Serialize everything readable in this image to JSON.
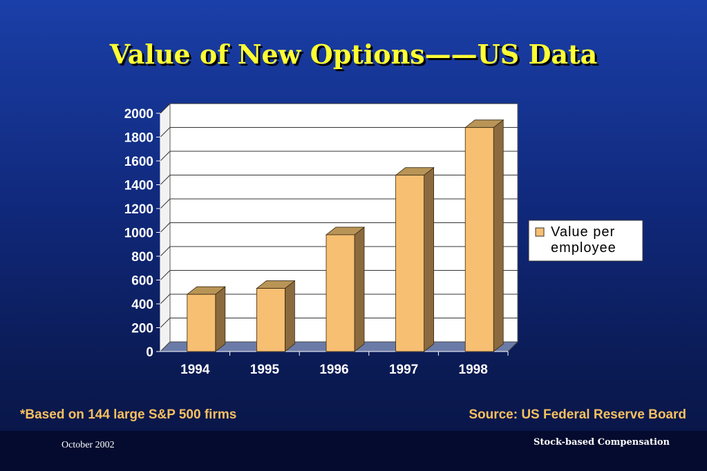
{
  "slide": {
    "title": "Value of New Options——US Data",
    "footnote": "*Based on 144 large S&P 500 firms",
    "source": "Source:  US Federal Reserve Board",
    "footer_date": "October 2002",
    "footer_topic": "Stock-based Compensation"
  },
  "chart_data": {
    "type": "bar",
    "categories": [
      "1994",
      "1995",
      "1996",
      "1997",
      "1998"
    ],
    "series": [
      {
        "name": "Value per employee",
        "values": [
          480,
          530,
          980,
          1480,
          1880
        ]
      }
    ],
    "yticks": [
      "0",
      "200",
      "400",
      "600",
      "800",
      "1000",
      "1200",
      "1400",
      "1600",
      "1800",
      "2000"
    ],
    "ylim": [
      0,
      2000
    ],
    "grid": true,
    "legend_position": "right",
    "legend_lines": [
      "Value per",
      "employee"
    ],
    "colors": {
      "bar_front": "#f7bf72",
      "bar_side": "#8a6a3e",
      "bar_top": "#b99457",
      "plot_bg": "#ffffff",
      "wall": "#6b7ba8"
    }
  }
}
